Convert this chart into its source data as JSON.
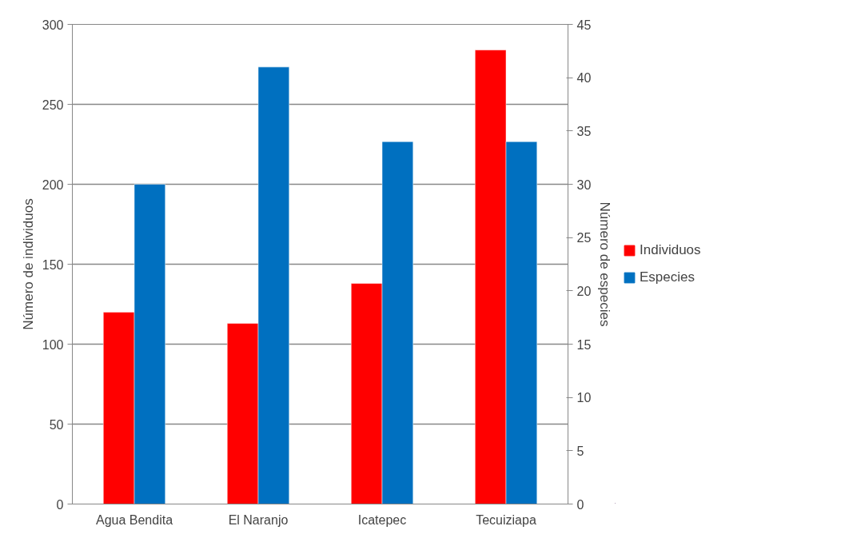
{
  "chart_data": {
    "type": "bar",
    "categories": [
      "Agua Bendita",
      "El Naranjo",
      "Icatepec",
      "Tecuiziapa"
    ],
    "series": [
      {
        "name": "Individuos",
        "color": "#ff0000",
        "values": [
          120,
          113,
          138,
          284
        ]
      },
      {
        "name": "Especies",
        "color": "#0070c0",
        "values": [
          30,
          41,
          34,
          34
        ],
        "axis": "y2"
      }
    ],
    "ylabel": "Número de individuos",
    "y2label": "Número de especies",
    "ylim": [
      0,
      300
    ],
    "yticks": [
      0,
      50,
      100,
      150,
      200,
      250,
      300
    ],
    "y2lim": [
      0,
      45
    ],
    "y2ticks": [
      0,
      5,
      10,
      15,
      20,
      25,
      30,
      35,
      40,
      45
    ],
    "grid": "y",
    "legend": "right"
  }
}
